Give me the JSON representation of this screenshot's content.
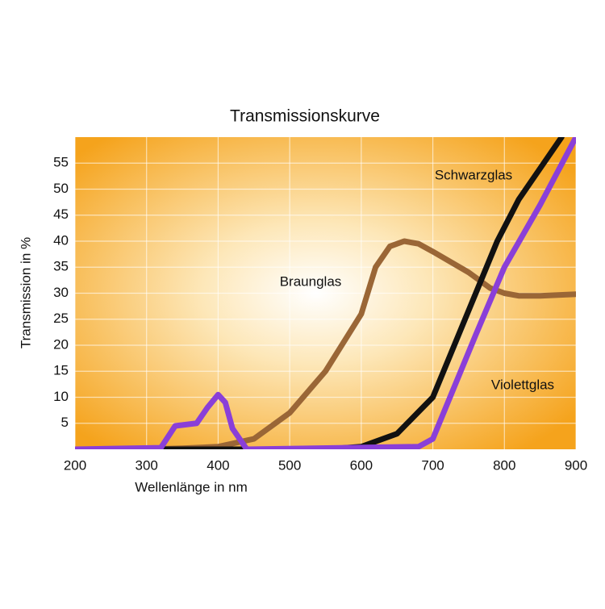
{
  "chart_data": {
    "type": "line",
    "title": "Transmissionskurve",
    "x_label": "Wellenlänge in nm",
    "y_label": "Transmission in %",
    "xlim": [
      200,
      900
    ],
    "xticks": [
      200,
      300,
      400,
      500,
      600,
      700,
      800,
      900
    ],
    "ylim": [
      0,
      60
    ],
    "yticks": [
      5,
      10,
      15,
      20,
      25,
      30,
      35,
      40,
      45,
      50,
      55
    ],
    "grid": true,
    "series": [
      {
        "name": "Braunglas",
        "color": "#9a6636",
        "x": [
          200,
          300,
          350,
          400,
          450,
          500,
          550,
          600,
          620,
          640,
          660,
          680,
          700,
          750,
          780,
          800,
          820,
          850,
          900
        ],
        "values": [
          0,
          0,
          0.2,
          0.5,
          2,
          7,
          15,
          26,
          35,
          39,
          40,
          39.5,
          38,
          34,
          31,
          30,
          29.5,
          29.5,
          29.8
        ]
      },
      {
        "name": "Schwarzglas",
        "color": "#111111",
        "x": [
          200,
          550,
          600,
          650,
          700,
          730,
          760,
          790,
          820,
          850,
          880
        ],
        "values": [
          0,
          0,
          0.5,
          3,
          10,
          20,
          30,
          40,
          48,
          54,
          60
        ]
      },
      {
        "name": "Violettglas",
        "color": "#8a3fd8",
        "x": [
          200,
          320,
          340,
          370,
          385,
          400,
          410,
          420,
          440,
          680,
          700,
          730,
          760,
          800,
          850,
          900
        ],
        "values": [
          0,
          0.3,
          4.5,
          5,
          8,
          10.5,
          9,
          4,
          0,
          0.5,
          2,
          12,
          22,
          35,
          47,
          60
        ]
      }
    ]
  }
}
